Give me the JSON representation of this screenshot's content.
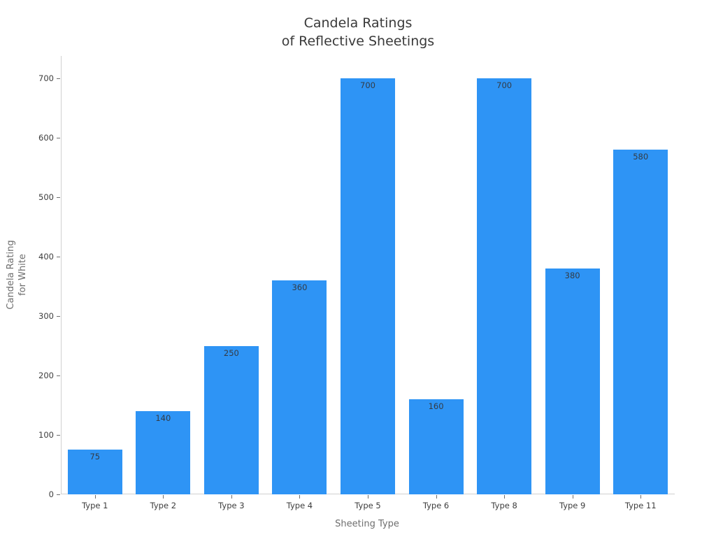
{
  "chart_data": {
    "type": "bar",
    "title": "Candela Ratings\nof Reflective Sheetings",
    "title_lines": [
      "Candela Ratings",
      "of Reflective Sheetings"
    ],
    "categories": [
      "Type 1",
      "Type 2",
      "Type 3",
      "Type 4",
      "Type 5",
      "Type 6",
      "Type 8",
      "Type 9",
      "Type 11"
    ],
    "values": [
      75,
      140,
      250,
      360,
      700,
      160,
      700,
      380,
      580
    ],
    "bar_value_labels": [
      "75",
      "140",
      "250",
      "360",
      "700",
      "160",
      "700",
      "380",
      "580"
    ],
    "xlabel": "Sheeting Type",
    "ylabel": "Candela Rating\nfor White",
    "ylabel_lines": [
      "Candela Rating",
      "for White"
    ],
    "ylim": [
      0,
      700
    ],
    "yticks": [
      0,
      100,
      200,
      300,
      400,
      500,
      600,
      700
    ],
    "grid": false,
    "legend_position": "none",
    "colors": {
      "background": "#FFFFFF",
      "bar": "#2E94F5",
      "title_text": "#3A3A3A",
      "tick_label": "#3D3D3D",
      "value_label": "#333B45",
      "axis_label": "#6E6E6E",
      "spine": "#D0D0D0",
      "tick_mark": "#6E6E6E"
    }
  }
}
